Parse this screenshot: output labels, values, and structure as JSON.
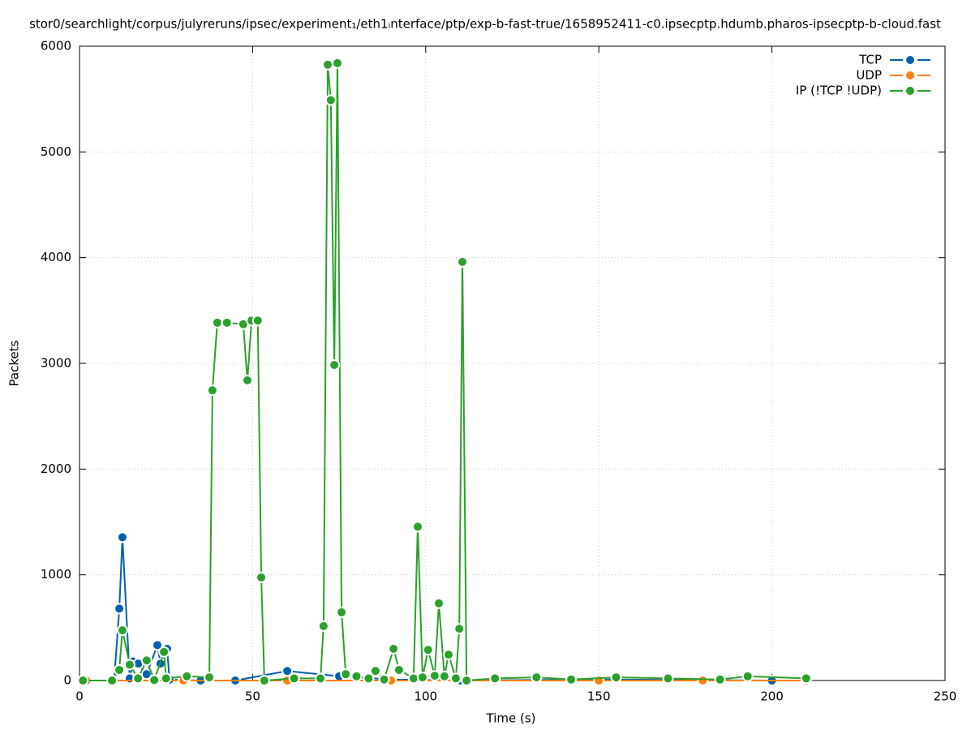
{
  "chart_data": {
    "type": "line",
    "title": "stor0/searchlight/corpus/julyreruns/ipsec/experiment₁/eth1ᵢnterface/ptp/exp-b-fast-true/1658952411-c0.ipsecptp.hdumb.pharos-ipsecptp-b-cloud.fast",
    "xlabel": "Time (s)",
    "ylabel": "Packets",
    "xlim": [
      0,
      250
    ],
    "ylim": [
      0,
      6000
    ],
    "xticks": [
      0,
      50,
      100,
      150,
      200,
      250
    ],
    "yticks": [
      0,
      1000,
      2000,
      3000,
      4000,
      5000,
      6000
    ],
    "grid": true,
    "legend": "top-right",
    "series": [
      {
        "name": "TCP",
        "color": "#0060ad",
        "x": [
          10,
          11.5,
          12.4,
          14.5,
          15.5,
          17,
          19.4,
          22.5,
          23.4,
          25.3,
          26,
          35,
          45,
          60,
          75,
          90,
          110,
          150,
          200
        ],
        "values": [
          0,
          680,
          1355,
          20,
          180,
          160,
          60,
          335,
          160,
          300,
          10,
          0,
          0,
          90,
          40,
          10,
          0,
          10,
          0
        ]
      },
      {
        "name": "UDP",
        "color": "#ff7f0e",
        "x": [
          2,
          30,
          60,
          90,
          120,
          150,
          180,
          209.9
        ],
        "values": [
          0,
          0,
          0,
          0,
          0,
          0,
          0,
          0
        ]
      },
      {
        "name": "IP (!TCP  !UDP)",
        "color": "#2ca02c",
        "x": [
          1,
          9.4,
          11.5,
          12.4,
          14.5,
          16.9,
          19.4,
          21.6,
          24.4,
          25,
          31,
          37.5,
          38.4,
          39.8,
          42.6,
          47.3,
          48.5,
          49.7,
          51.5,
          52.5,
          53.4,
          62,
          69.6,
          70.5,
          71.7,
          72.6,
          73.6,
          74.5,
          75.7,
          76.9,
          80,
          83.5,
          85.5,
          88,
          90.7,
          92.3,
          96.5,
          97.7,
          99.1,
          100.7,
          102.6,
          103.8,
          105.4,
          106.6,
          108.7,
          109.7,
          110.6,
          111.8,
          120,
          132,
          142,
          155,
          170,
          185,
          193,
          209.9
        ],
        "values": [
          0,
          0,
          100,
          475,
          150,
          20,
          190,
          5,
          270,
          20,
          40,
          30,
          2745,
          3385,
          3385,
          3370,
          2840,
          3405,
          3405,
          975,
          0,
          20,
          20,
          515,
          5825,
          5490,
          2985,
          5840,
          645,
          60,
          40,
          20,
          90,
          10,
          300,
          100,
          20,
          1455,
          30,
          290,
          45,
          730,
          40,
          245,
          20,
          490,
          3960,
          0,
          20,
          30,
          10,
          30,
          20,
          10,
          40,
          20
        ]
      }
    ]
  }
}
